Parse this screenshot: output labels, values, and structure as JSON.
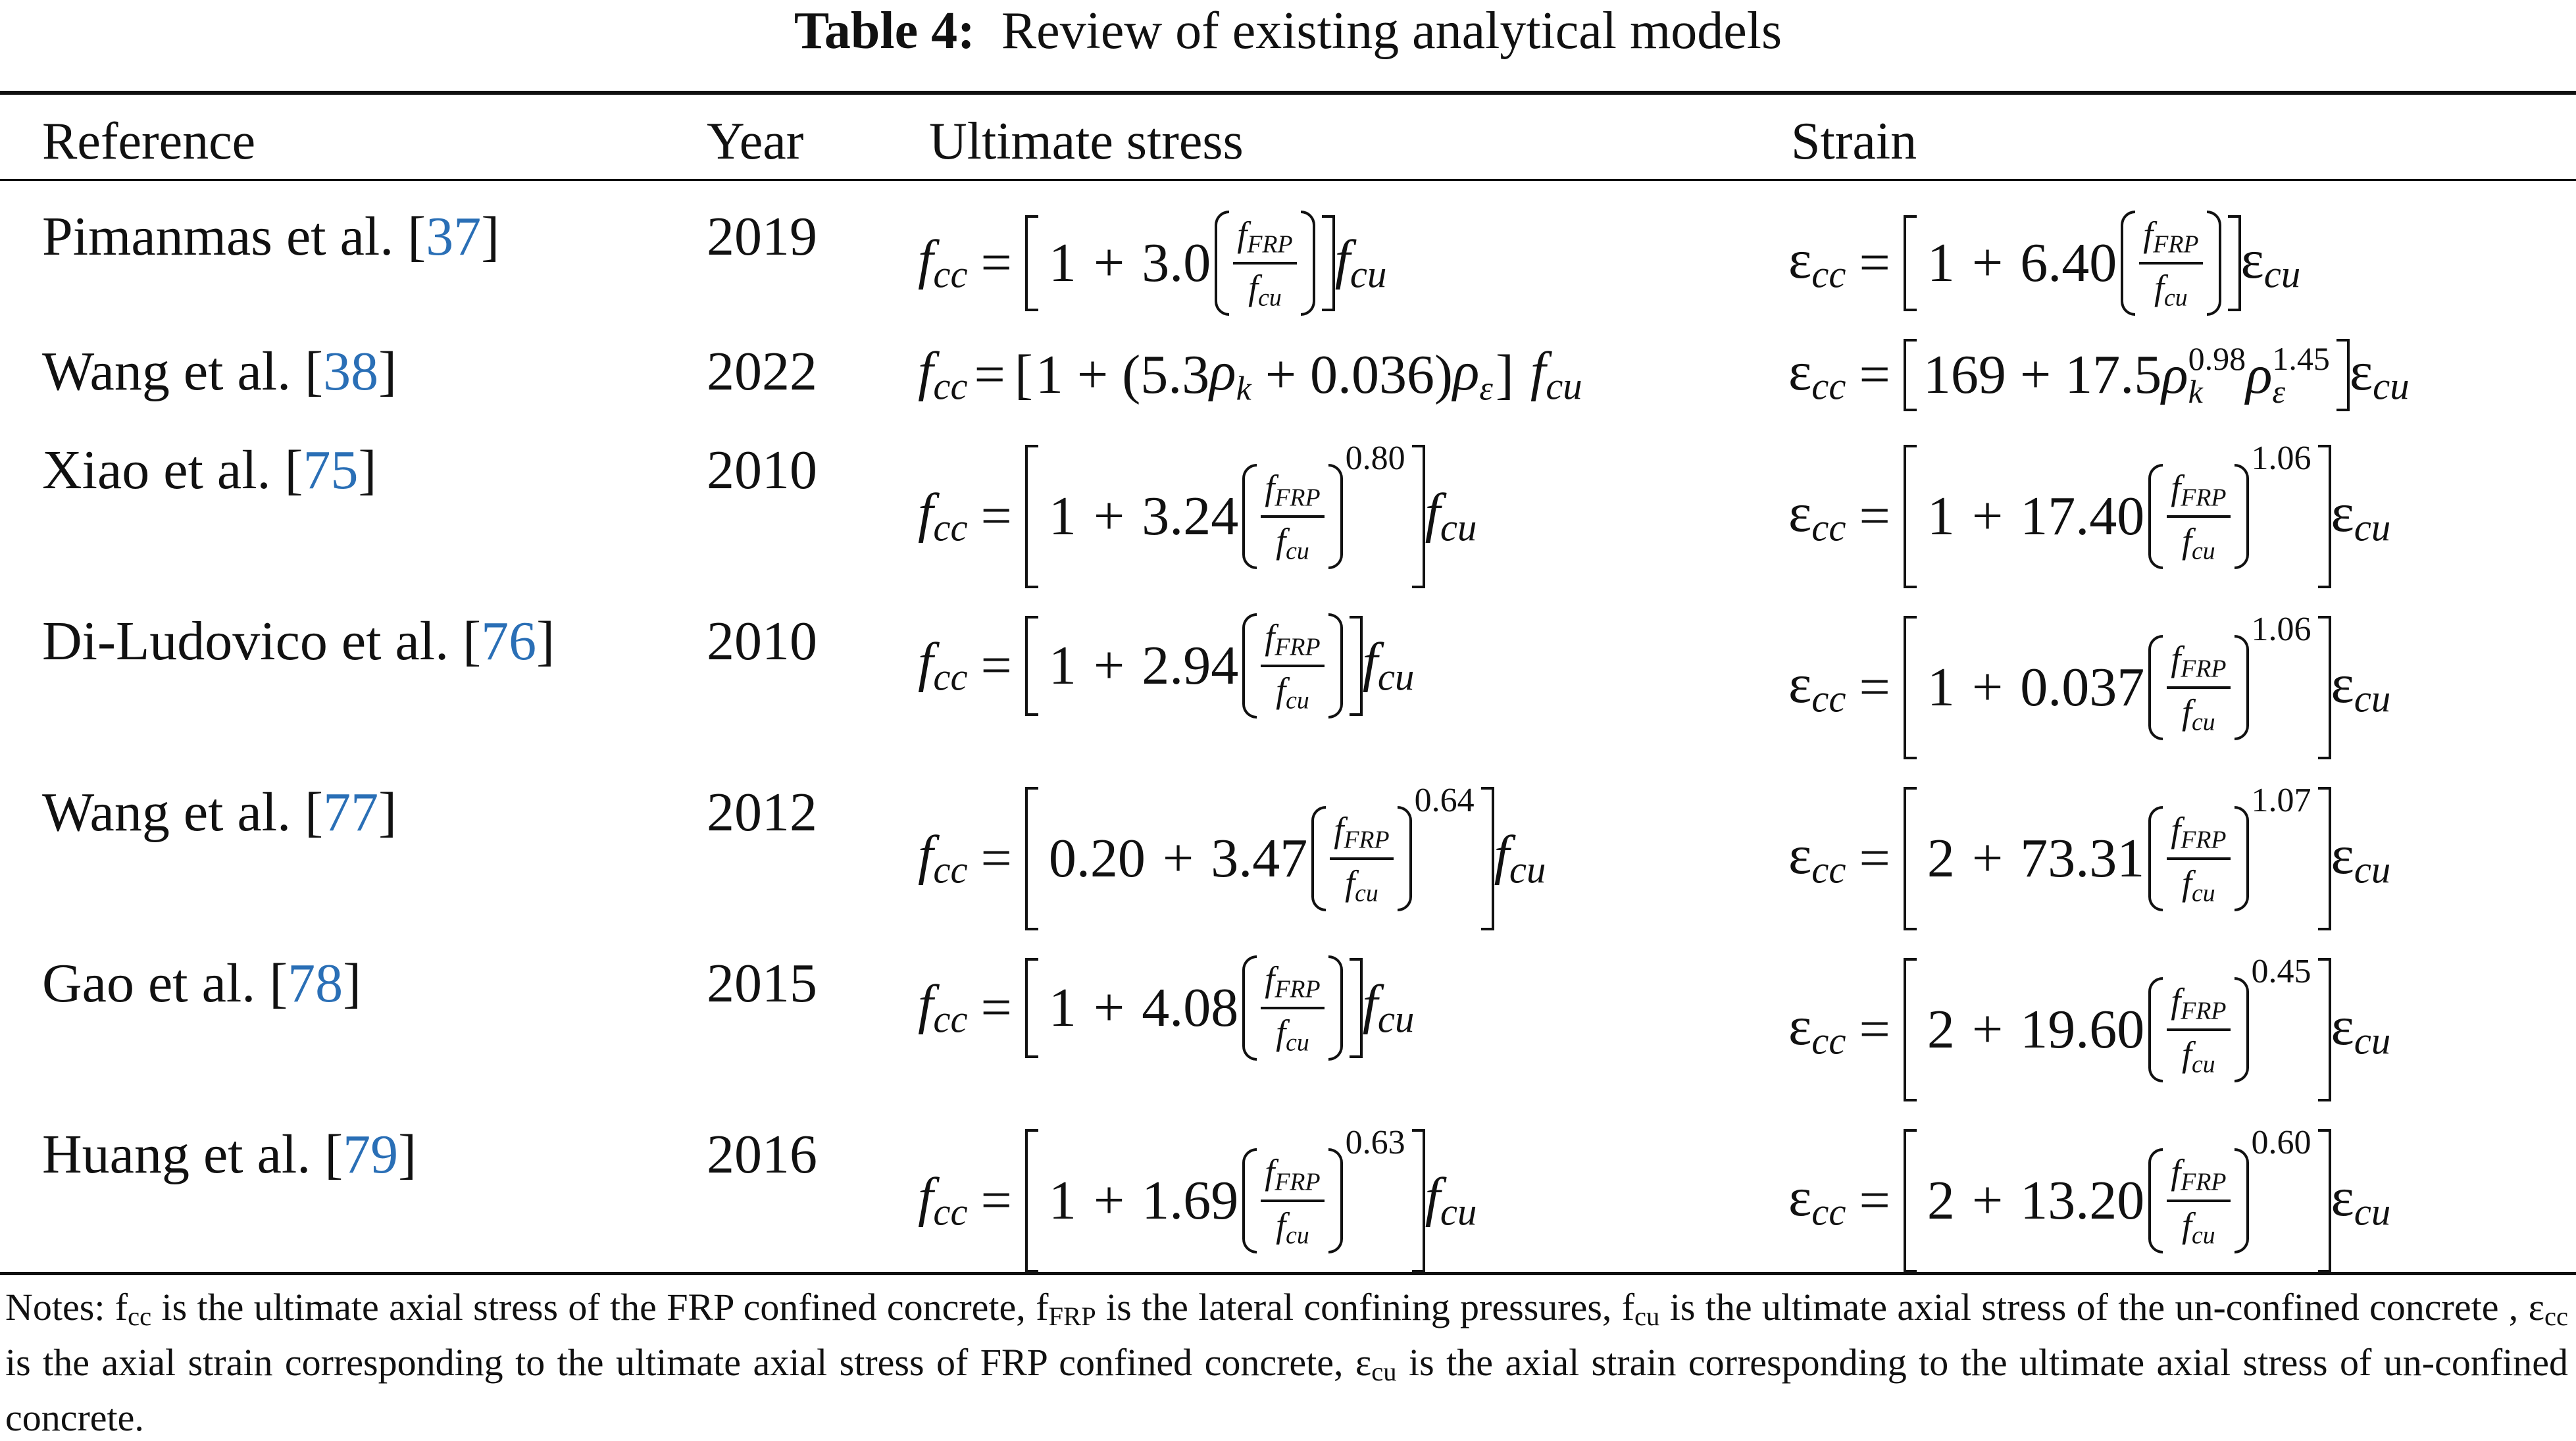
{
  "caption": {
    "label": "Table 4:",
    "text": "Review of existing analytical models"
  },
  "headers": {
    "reference": "Reference",
    "year": "Year",
    "stress": "Ultimate stress",
    "strain": "Strain"
  },
  "rows": [
    {
      "ref": "Pimanmas et al. [",
      "cite": "37",
      "ref_end": "]",
      "year": "2019",
      "stress": {
        "const": "1",
        "coef": "3.0",
        "exp": ""
      },
      "strain": {
        "const": "1",
        "coef": "6.40",
        "exp": ""
      }
    },
    {
      "ref": "Wang et al. [",
      "cite": "38",
      "ref_end": "]",
      "year": "2022",
      "stress": {
        "a": "1 + (5.3",
        "b": "+ 0.036)"
      },
      "strain": {
        "a": "169 + 17.5",
        "e1": "0.98",
        "e2": "1.45"
      }
    },
    {
      "ref": "Xiao et al. [",
      "cite": "75",
      "ref_end": "]",
      "year": "2010",
      "stress": {
        "const": "1",
        "coef": "3.24",
        "exp": "0.80"
      },
      "strain": {
        "const": "1",
        "coef": "17.40",
        "exp": "1.06"
      }
    },
    {
      "ref": "Di-Ludovico et al. [",
      "cite": "76",
      "ref_end": "]",
      "year": "2010",
      "stress": {
        "const": "1",
        "coef": "2.94",
        "exp": ""
      },
      "strain": {
        "const": "1",
        "coef": "0.037",
        "exp": "1.06"
      }
    },
    {
      "ref": "Wang et al. [",
      "cite": "77",
      "ref_end": "]",
      "year": "2012",
      "stress": {
        "const": "0.20",
        "coef": "3.47",
        "exp": "0.64"
      },
      "strain": {
        "const": "2",
        "coef": "73.31",
        "exp": "1.07"
      }
    },
    {
      "ref": "Gao et al. [",
      "cite": "78",
      "ref_end": "]",
      "year": "2015",
      "stress": {
        "const": "1",
        "coef": "4.08",
        "exp": ""
      },
      "strain": {
        "const": "2",
        "coef": "19.60",
        "exp": "0.45"
      }
    },
    {
      "ref": "Huang et al. [",
      "cite": "79",
      "ref_end": "]",
      "year": "2016",
      "stress": {
        "const": "1",
        "coef": "1.69",
        "exp": "0.63"
      },
      "strain": {
        "const": "2",
        "coef": "13.20",
        "exp": "0.60"
      }
    }
  ],
  "notes": {
    "t1": "Notes: f",
    "s1": "cc",
    "t2": " is the ultimate axial stress of the FRP confined concrete, f",
    "s2": "FRP",
    "t3": " is the lateral confining pressures, f",
    "s3": "cu",
    "t4": " is the ultimate axial stress of the un-confined concrete , ε",
    "s4": "cc",
    "t5": " is the axial strain corresponding to the ultimate axial stress of FRP confined concrete, ε",
    "s5": "cu",
    "t6": " is the axial strain corresponding to the ultimate axial stress of un-confined concrete."
  }
}
